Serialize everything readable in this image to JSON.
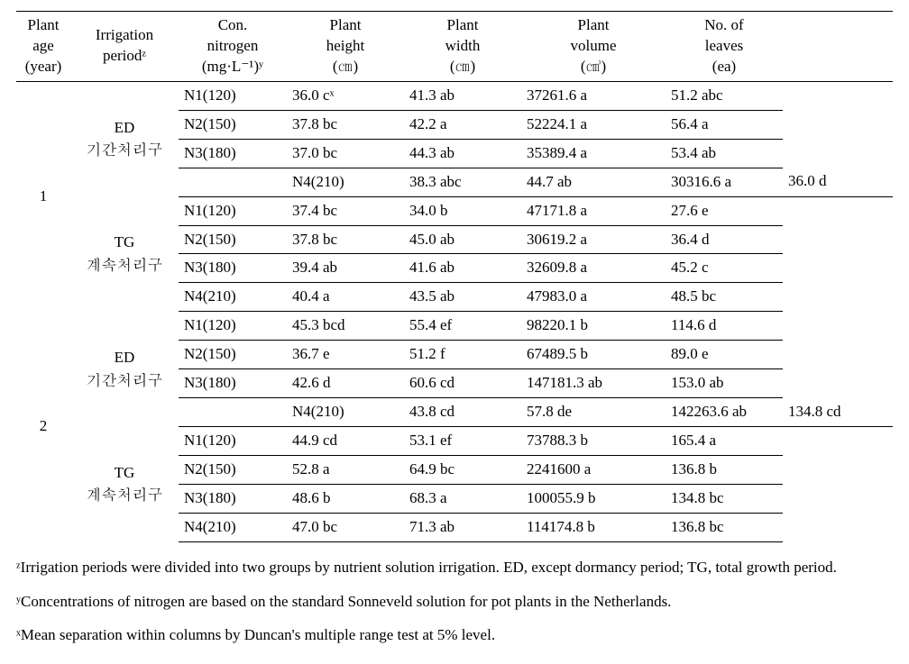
{
  "header": {
    "age": "Plant\nage\n(year)",
    "irr": "Irrigation\nperiodᶻ",
    "con": "Con.\nnitrogen\n(mg·L⁻¹)ʸ",
    "height": "Plant\nheight\n(㎝)",
    "width": "Plant\nwidth\n(㎝)",
    "volume": "Plant\nvolume\n(㎤)",
    "leaves": "No. of\nleaves\n(ea)"
  },
  "ages": [
    "1",
    "2"
  ],
  "groups": {
    "ed": "ED\n기간처리구",
    "tg": "TG\n계속처리구"
  },
  "con_labels": [
    "N1(120)",
    "N2(150)",
    "N3(180)",
    "N4(210)"
  ],
  "rows": {
    "a1_ed": [
      {
        "h": "36.0 cˣ",
        "w": "41.3 ab",
        "v": "37261.6 a",
        "l": "51.2 abc"
      },
      {
        "h": "37.8 bc",
        "w": "42.2 a",
        "v": "52224.1 a",
        "l": "56.4 a"
      },
      {
        "h": "37.0 bc",
        "w": "44.3 ab",
        "v": "35389.4 a",
        "l": "53.4 ab"
      },
      {
        "h": "38.3 abc",
        "w": "44.7 ab",
        "v": "30316.6 a",
        "l": "36.0 d"
      }
    ],
    "a1_tg": [
      {
        "h": "37.4 bc",
        "w": "34.0 b",
        "v": "47171.8 a",
        "l": "27.6 e"
      },
      {
        "h": "37.8 bc",
        "w": "45.0 ab",
        "v": "30619.2 a",
        "l": "36.4 d"
      },
      {
        "h": "39.4 ab",
        "w": "41.6 ab",
        "v": "32609.8 a",
        "l": "45.2 c"
      },
      {
        "h": "40.4 a",
        "w": "43.5 ab",
        "v": "47983.0 a",
        "l": "48.5 bc"
      }
    ],
    "a2_ed": [
      {
        "h": "45.3 bcd",
        "w": "55.4 ef",
        "v": "98220.1 b",
        "l": "114.6 d"
      },
      {
        "h": "36.7 e",
        "w": "51.2 f",
        "v": "67489.5 b",
        "l": "89.0 e"
      },
      {
        "h": "42.6 d",
        "w": "60.6 cd",
        "v": "147181.3 ab",
        "l": "153.0 ab"
      },
      {
        "h": "43.8 cd",
        "w": "57.8 de",
        "v": "142263.6 ab",
        "l": "134.8 cd"
      }
    ],
    "a2_tg": [
      {
        "h": "44.9 cd",
        "w": "53.1 ef",
        "v": "73788.3 b",
        "l": "165.4 a"
      },
      {
        "h": "52.8 a",
        "w": "64.9 bc",
        "v": "2241600 a",
        "l": "136.8 b"
      },
      {
        "h": "48.6 b",
        "w": "68.3 a",
        "v": "100055.9 b",
        "l": "134.8 bc"
      },
      {
        "h": "47.0 bc",
        "w": "71.3 ab",
        "v": "114174.8 b",
        "l": "136.8 bc"
      }
    ]
  },
  "footnotes": {
    "z": "ᶻIrrigation periods were divided into two groups by nutrient solution irrigation. ED, except dormancy period; TG, total growth period.",
    "y": "ʸConcentrations of nitrogen are based on the standard Sonneveld solution for pot plants in the Netherlands.",
    "x": "ˣMean separation within columns by Duncan's multiple range test at 5% level."
  }
}
